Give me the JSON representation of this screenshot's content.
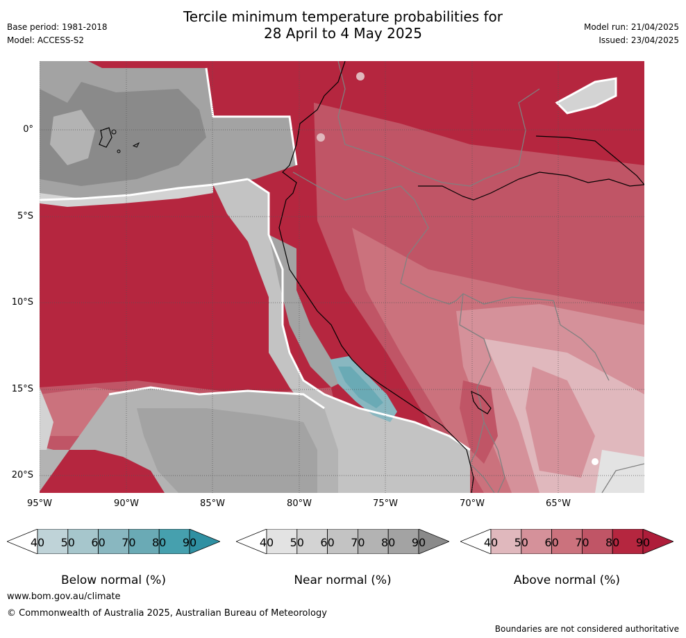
{
  "header": {
    "title_line1": "Tercile minimum temperature probabilities for",
    "title_line2": "28 April to 4 May 2025",
    "base_period": "Base period: 1981-2018",
    "model": "Model: ACCESS-S2",
    "model_run": "Model run: 21/04/2025",
    "issued": "Issued: 23/04/2025"
  },
  "map": {
    "lat_labels": [
      "0°",
      "5°S",
      "10°S",
      "15°S",
      "20°S"
    ],
    "lon_labels": [
      "95°W",
      "90°W",
      "85°W",
      "80°W",
      "75°W",
      "70°W",
      "65°W"
    ]
  },
  "legend": {
    "ticks": [
      "40",
      "50",
      "60",
      "70",
      "80",
      "90"
    ],
    "below": {
      "title": "Below normal (%)",
      "colors": [
        "#bfd3d8",
        "#a6c6cc",
        "#89b7c0",
        "#6aaab5",
        "#46a0ae",
        "#2f90a2"
      ]
    },
    "near": {
      "title": "Near normal (%)",
      "colors": [
        "#e3e3e3",
        "#d3d3d3",
        "#c3c3c3",
        "#b3b3b3",
        "#a3a3a3",
        "#8a8a8a"
      ]
    },
    "above": {
      "title": "Above normal (%)",
      "colors": [
        "#e0b8bd",
        "#d5919a",
        "#cb727d",
        "#c05566",
        "#b5263f",
        "#ae1d3a"
      ]
    }
  },
  "footer": {
    "url": "www.bom.gov.au/climate",
    "copyright": "© Commonwealth of Australia 2025, Australian Bureau of Meteorology",
    "disclaimer": "Boundaries are not considered authoritative"
  }
}
